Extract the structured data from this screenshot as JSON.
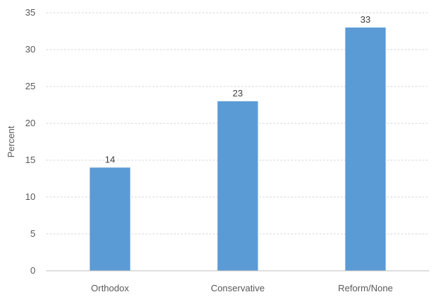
{
  "chart_data": {
    "type": "bar",
    "categories": [
      "Orthodox",
      "Conservative",
      "Reform/None"
    ],
    "values": [
      14,
      23,
      33
    ],
    "data_labels": [
      "14",
      "23",
      "33"
    ],
    "ylabel": "Percent",
    "xlabel": "",
    "ylim": [
      0,
      35
    ],
    "yticks": [
      0,
      5,
      10,
      15,
      20,
      25,
      30,
      35
    ],
    "grid": true,
    "bar_color": "#5b9bd5"
  }
}
